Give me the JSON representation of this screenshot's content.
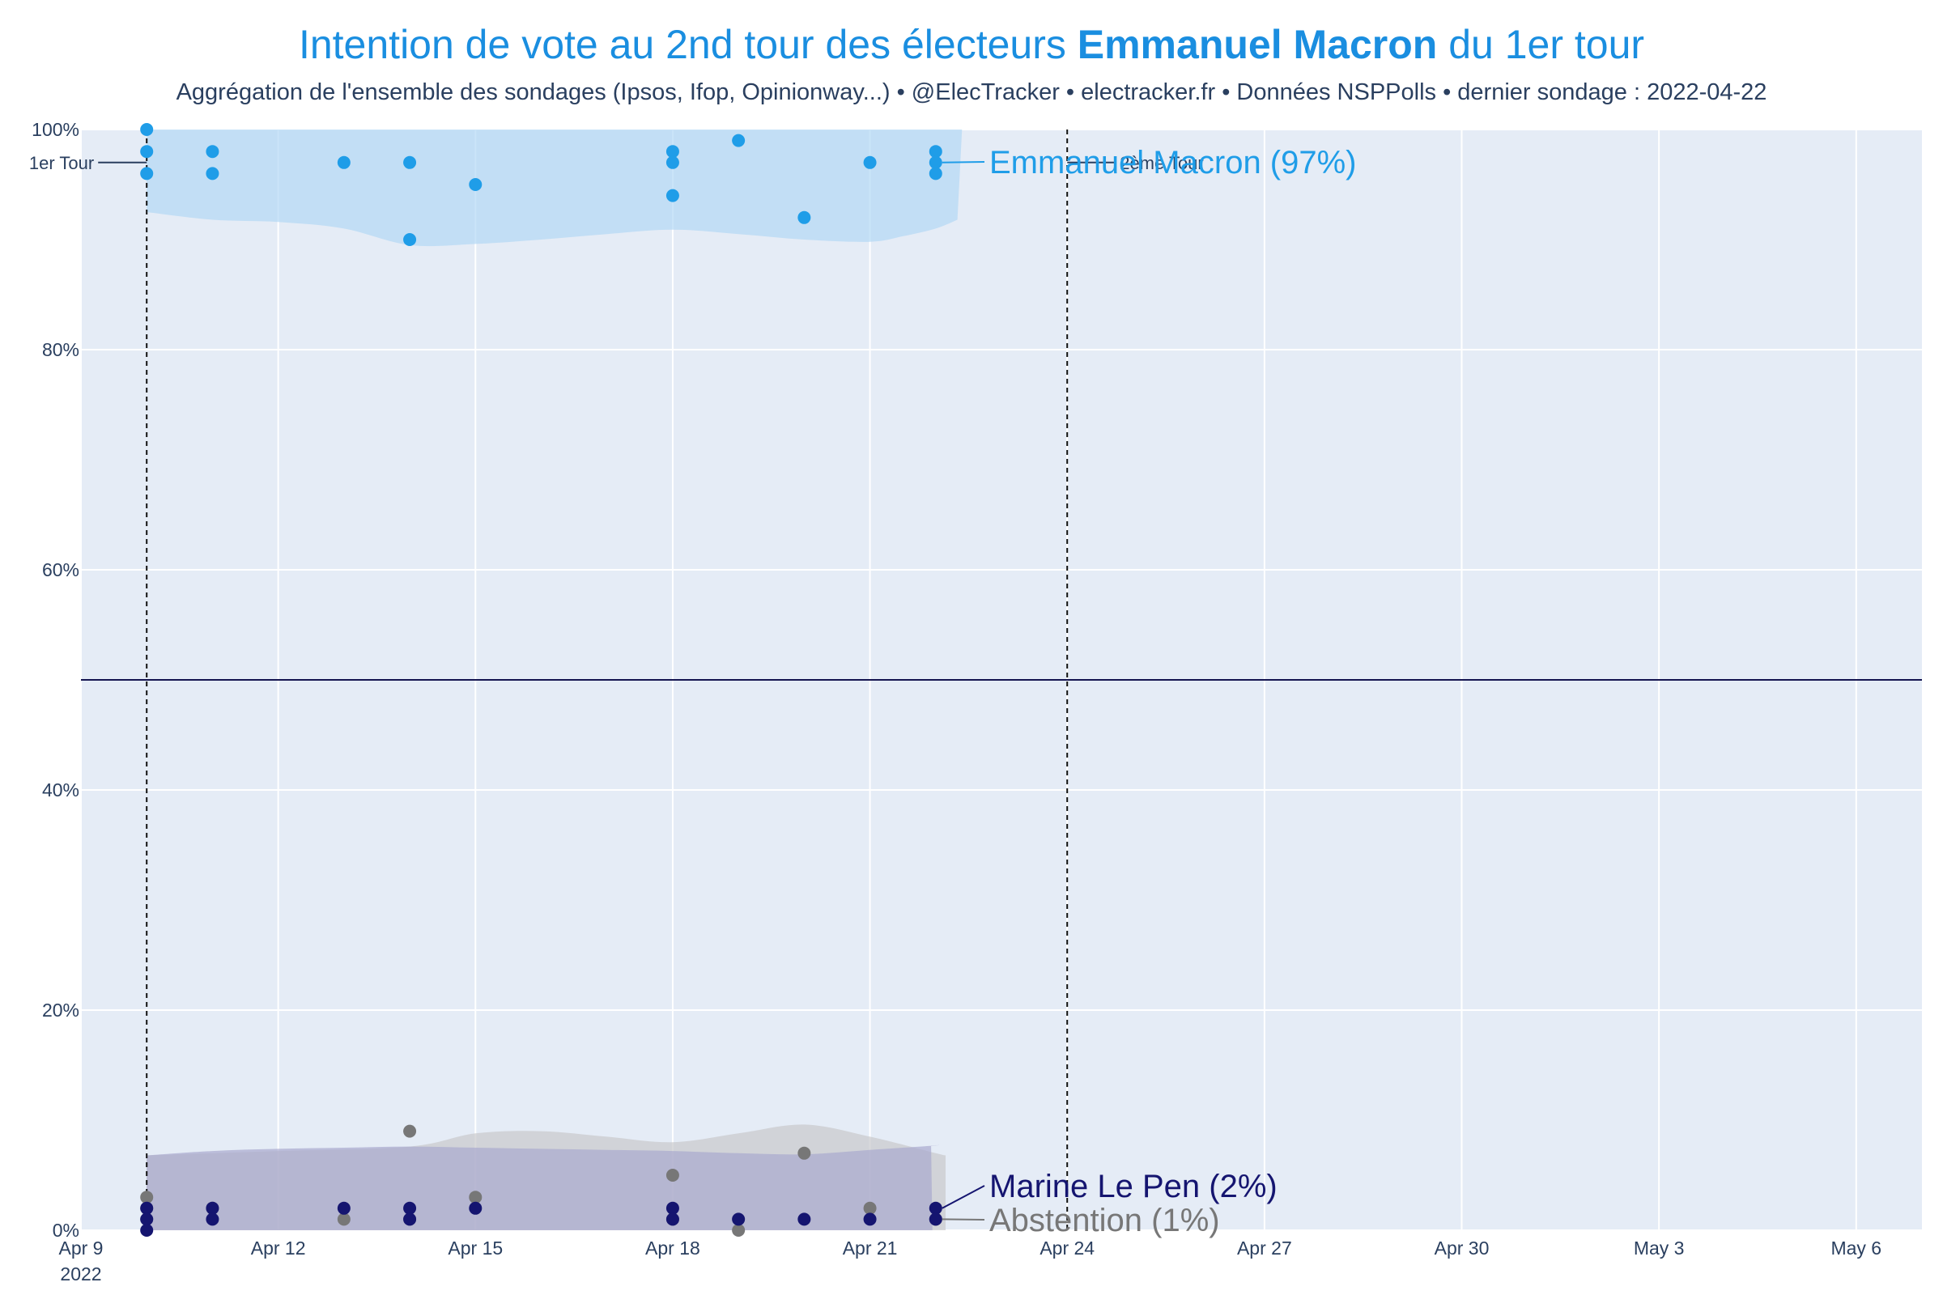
{
  "chart_data": {
    "type": "scatter",
    "title_prefix": "Intention de vote au 2nd tour des électeurs ",
    "title_bold": "Emmanuel Macron",
    "title_suffix": " du 1er tour",
    "subtitle": "Aggrégation de l'ensemble des sondages (Ipsos, Ifop, Opinionway...) • @ElecTracker • electracker.fr • Données NSPPolls • dernier sondage : 2022-04-22",
    "xlabel": "",
    "ylabel": "",
    "x_range": [
      0,
      28
    ],
    "ylim": [
      0,
      100
    ],
    "x_ticks": [
      {
        "x": 0,
        "label": "Apr 9",
        "sublabel": "2022"
      },
      {
        "x": 3,
        "label": "Apr 12"
      },
      {
        "x": 6,
        "label": "Apr 15"
      },
      {
        "x": 9,
        "label": "Apr 18"
      },
      {
        "x": 12,
        "label": "Apr 21"
      },
      {
        "x": 15,
        "label": "Apr 24"
      },
      {
        "x": 18,
        "label": "Apr 27"
      },
      {
        "x": 21,
        "label": "Apr 30"
      },
      {
        "x": 24,
        "label": "May 3"
      },
      {
        "x": 27,
        "label": "May 6"
      }
    ],
    "y_ticks": [
      {
        "y": 0,
        "label": "0%"
      },
      {
        "y": 20,
        "label": "20%"
      },
      {
        "y": 40,
        "label": "40%"
      },
      {
        "y": 60,
        "label": "60%"
      },
      {
        "y": 80,
        "label": "80%"
      },
      {
        "y": 100,
        "label": "100%"
      }
    ],
    "majority_line": 50,
    "vertical_markers": [
      {
        "x": 1,
        "label": "1er Tour",
        "y": 97
      },
      {
        "x": 15,
        "label": "2ème Tour",
        "y": 97
      }
    ],
    "series": [
      {
        "name": "Emmanuel Macron",
        "end_label": "Emmanuel Macron (97%)",
        "final_value": 97,
        "color": "#1f9de8",
        "band_color": "#b3d9f5",
        "points": [
          [
            1,
            100
          ],
          [
            1,
            98
          ],
          [
            1,
            96
          ],
          [
            2,
            98
          ],
          [
            2,
            96
          ],
          [
            4,
            97
          ],
          [
            5,
            97
          ],
          [
            5,
            90
          ],
          [
            6,
            95
          ],
          [
            9,
            98
          ],
          [
            9,
            97
          ],
          [
            9,
            94
          ],
          [
            10,
            99
          ],
          [
            11,
            92
          ],
          [
            12,
            97
          ],
          [
            13,
            98
          ],
          [
            13,
            97
          ],
          [
            13,
            96
          ]
        ],
        "band_upper": [
          [
            1,
            100
          ],
          [
            13.4,
            100
          ]
        ],
        "band_lower": [
          [
            1,
            92.5
          ],
          [
            2,
            91.8
          ],
          [
            3,
            91.6
          ],
          [
            4,
            91
          ],
          [
            5,
            89.5
          ],
          [
            6,
            89.6
          ],
          [
            7,
            90
          ],
          [
            8,
            90.5
          ],
          [
            9,
            90.9
          ],
          [
            10,
            90.5
          ],
          [
            11,
            90
          ],
          [
            12,
            89.8
          ],
          [
            12.5,
            90.3
          ],
          [
            13,
            91
          ],
          [
            13.33,
            91.8
          ]
        ]
      },
      {
        "name": "Abstention",
        "end_label": "Abstention (1%)",
        "final_value": 1,
        "color": "#777777",
        "band_color": "#c9c9cc",
        "points": [
          [
            1,
            3
          ],
          [
            1,
            2
          ],
          [
            1,
            1
          ],
          [
            2,
            2
          ],
          [
            4,
            1
          ],
          [
            5,
            9
          ],
          [
            5,
            1
          ],
          [
            6,
            3
          ],
          [
            9,
            5
          ],
          [
            9,
            1
          ],
          [
            10,
            0
          ],
          [
            11,
            7
          ],
          [
            12,
            2
          ],
          [
            13,
            1
          ]
        ],
        "band_upper": [
          [
            1,
            6.8
          ],
          [
            3,
            7.2
          ],
          [
            5,
            7.6
          ],
          [
            6,
            8.8
          ],
          [
            7,
            9
          ],
          [
            8,
            8.5
          ],
          [
            9,
            8
          ],
          [
            10,
            8.8
          ],
          [
            11,
            9.6
          ],
          [
            12,
            8.5
          ],
          [
            13,
            7
          ],
          [
            13.15,
            6.8
          ]
        ],
        "band_lower": [
          [
            1,
            0
          ],
          [
            13.15,
            0
          ]
        ]
      },
      {
        "name": "Marine Le Pen",
        "end_label": "Marine Le Pen (2%)",
        "final_value": 2,
        "color": "#151570",
        "band_color": "#a9a9cf",
        "points": [
          [
            1,
            2
          ],
          [
            1,
            1
          ],
          [
            1,
            0
          ],
          [
            2,
            2
          ],
          [
            2,
            1
          ],
          [
            4,
            2
          ],
          [
            5,
            2
          ],
          [
            5,
            1
          ],
          [
            6,
            2
          ],
          [
            9,
            2
          ],
          [
            9,
            1
          ],
          [
            10,
            1
          ],
          [
            11,
            1
          ],
          [
            12,
            1
          ],
          [
            13,
            2
          ],
          [
            13,
            1
          ]
        ],
        "band_upper": [
          [
            1,
            6.8
          ],
          [
            2,
            7.2
          ],
          [
            3,
            7.4
          ],
          [
            4,
            7.5
          ],
          [
            5,
            7.6
          ],
          [
            6,
            7.5
          ],
          [
            7,
            7.4
          ],
          [
            8,
            7.3
          ],
          [
            9,
            7.2
          ],
          [
            10,
            7
          ],
          [
            11,
            6.9
          ],
          [
            12,
            7.3
          ],
          [
            13,
            7.7
          ],
          [
            12.93,
            7.7
          ]
        ],
        "band_lower": [
          [
            1,
            0
          ],
          [
            12.95,
            0
          ]
        ]
      }
    ]
  },
  "colors": {
    "plot_background": "#e5ecf6",
    "gridline": "#ffffff",
    "axis_text": "#2a3f5f",
    "title": "#1a8ee0"
  }
}
